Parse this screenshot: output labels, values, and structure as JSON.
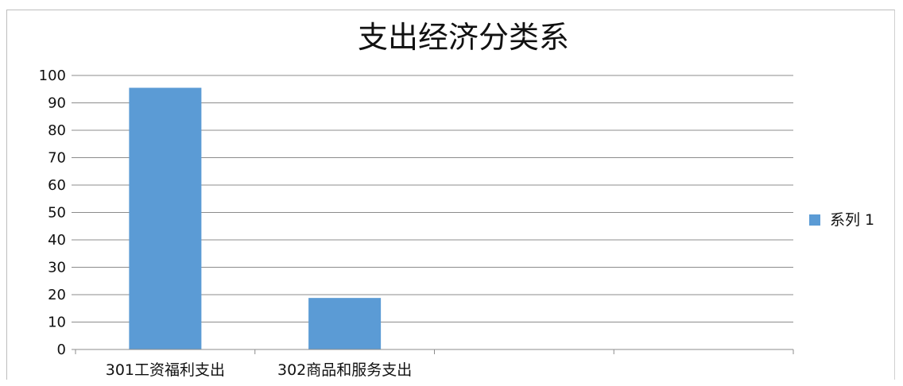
{
  "chart_data": {
    "type": "bar",
    "title": "支出经济分类系",
    "categories": [
      "301工资福利支出",
      "302商品和服务支出",
      "",
      ""
    ],
    "series": [
      {
        "name": "系列 1",
        "values": [
          95.5,
          18.8,
          0,
          0
        ]
      }
    ],
    "y_ticks": [
      "0",
      "10",
      "20",
      "30",
      "40",
      "50",
      "60",
      "70",
      "80",
      "90",
      "100"
    ],
    "ylim": [
      0,
      100
    ],
    "grid": true,
    "legend_position": "right",
    "colors": {
      "bar": "#5b9bd5",
      "grid": "#8c8c8c",
      "axis": "#8c8c8c"
    }
  }
}
